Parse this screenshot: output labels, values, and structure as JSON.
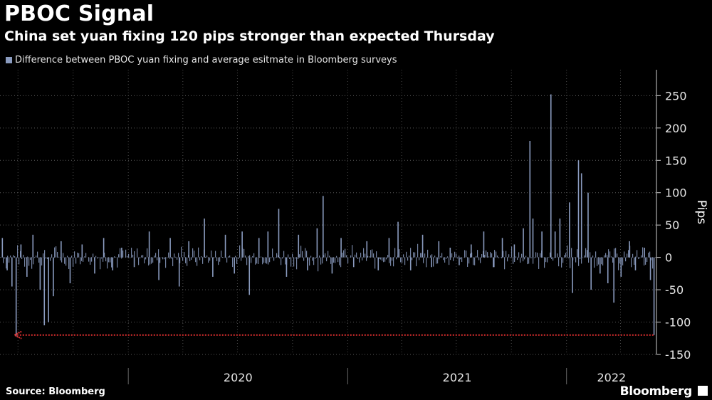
{
  "header": {
    "title": "PBOC Signal",
    "subtitle": "China set yuan fixing 120 pips stronger than expected Thursday"
  },
  "legend": {
    "label": "Difference between PBOC yuan fixing and average esitmate in Bloomberg surveys",
    "color": "#8a9bbf"
  },
  "footer": {
    "source": "Source: Bloomberg",
    "brand": "Bloomberg"
  },
  "chart_data": {
    "type": "bar",
    "ylabel": "Pips",
    "ylim": [
      -150,
      290
    ],
    "yticks": [
      250,
      200,
      150,
      100,
      50,
      0,
      -50,
      -100,
      -150
    ],
    "xlabels": [
      "2020",
      "2021",
      "2022"
    ],
    "xrange": [
      "2019-06-01",
      "2022-05-31"
    ],
    "year_boundaries": [
      "2020-01-01",
      "2021-01-01",
      "2022-01-01"
    ],
    "grid": true,
    "annotation": {
      "value": -120,
      "color": "#e03030",
      "style": "dotted-arrow",
      "from": "2022-05-26",
      "to": "2019-06-25"
    },
    "series": [
      {
        "color": "#8a9bbf",
        "points": [
          {
            "x": "2019-06-04",
            "y": 30
          },
          {
            "x": "2019-06-12",
            "y": -20
          },
          {
            "x": "2019-06-20",
            "y": -45
          },
          {
            "x": "2019-06-27",
            "y": -122
          },
          {
            "x": "2019-07-05",
            "y": 20
          },
          {
            "x": "2019-07-15",
            "y": -30
          },
          {
            "x": "2019-07-25",
            "y": 35
          },
          {
            "x": "2019-08-06",
            "y": -50
          },
          {
            "x": "2019-08-13",
            "y": -105
          },
          {
            "x": "2019-08-20",
            "y": -100
          },
          {
            "x": "2019-08-28",
            "y": -60
          },
          {
            "x": "2019-09-10",
            "y": 25
          },
          {
            "x": "2019-09-25",
            "y": -40
          },
          {
            "x": "2019-10-15",
            "y": 20
          },
          {
            "x": "2019-11-05",
            "y": -25
          },
          {
            "x": "2019-11-20",
            "y": 30
          },
          {
            "x": "2019-12-05",
            "y": -20
          },
          {
            "x": "2019-12-20",
            "y": 15
          },
          {
            "x": "2020-01-10",
            "y": -15
          },
          {
            "x": "2020-02-04",
            "y": 40
          },
          {
            "x": "2020-02-20",
            "y": -35
          },
          {
            "x": "2020-03-10",
            "y": 30
          },
          {
            "x": "2020-03-25",
            "y": -45
          },
          {
            "x": "2020-04-10",
            "y": 25
          },
          {
            "x": "2020-05-06",
            "y": 60
          },
          {
            "x": "2020-05-20",
            "y": -30
          },
          {
            "x": "2020-06-10",
            "y": 35
          },
          {
            "x": "2020-06-25",
            "y": -25
          },
          {
            "x": "2020-07-08",
            "y": 40
          },
          {
            "x": "2020-07-20",
            "y": -58
          },
          {
            "x": "2020-08-05",
            "y": 30
          },
          {
            "x": "2020-08-20",
            "y": 40
          },
          {
            "x": "2020-09-07",
            "y": 75
          },
          {
            "x": "2020-09-20",
            "y": -30
          },
          {
            "x": "2020-10-10",
            "y": 35
          },
          {
            "x": "2020-10-25",
            "y": -20
          },
          {
            "x": "2020-11-10",
            "y": 45
          },
          {
            "x": "2020-11-20",
            "y": 95
          },
          {
            "x": "2020-12-05",
            "y": -25
          },
          {
            "x": "2020-12-20",
            "y": 30
          },
          {
            "x": "2021-01-10",
            "y": -15
          },
          {
            "x": "2021-02-01",
            "y": 25
          },
          {
            "x": "2021-02-20",
            "y": -20
          },
          {
            "x": "2021-03-10",
            "y": 30
          },
          {
            "x": "2021-03-25",
            "y": 55
          },
          {
            "x": "2021-04-15",
            "y": -20
          },
          {
            "x": "2021-05-05",
            "y": 35
          },
          {
            "x": "2021-05-20",
            "y": -15
          },
          {
            "x": "2021-06-01",
            "y": 25
          },
          {
            "x": "2021-06-20",
            "y": 15
          },
          {
            "x": "2021-07-05",
            "y": -12
          },
          {
            "x": "2021-07-25",
            "y": 20
          },
          {
            "x": "2021-08-15",
            "y": 40
          },
          {
            "x": "2021-09-01",
            "y": -15
          },
          {
            "x": "2021-09-15",
            "y": 30
          },
          {
            "x": "2021-10-05",
            "y": 20
          },
          {
            "x": "2021-10-20",
            "y": 45
          },
          {
            "x": "2021-10-31",
            "y": 180
          },
          {
            "x": "2021-11-05",
            "y": 60
          },
          {
            "x": "2021-11-20",
            "y": 40
          },
          {
            "x": "2021-12-05",
            "y": 252
          },
          {
            "x": "2021-12-12",
            "y": 40
          },
          {
            "x": "2021-12-20",
            "y": 60
          },
          {
            "x": "2022-01-05",
            "y": 85
          },
          {
            "x": "2022-01-10",
            "y": -55
          },
          {
            "x": "2022-01-20",
            "y": 150
          },
          {
            "x": "2022-01-25",
            "y": 130
          },
          {
            "x": "2022-02-05",
            "y": 100
          },
          {
            "x": "2022-02-10",
            "y": -50
          },
          {
            "x": "2022-02-25",
            "y": -25
          },
          {
            "x": "2022-03-10",
            "y": -40
          },
          {
            "x": "2022-03-20",
            "y": -70
          },
          {
            "x": "2022-04-01",
            "y": -30
          },
          {
            "x": "2022-04-15",
            "y": 25
          },
          {
            "x": "2022-04-25",
            "y": -20
          },
          {
            "x": "2022-05-10",
            "y": 15
          },
          {
            "x": "2022-05-20",
            "y": -35
          },
          {
            "x": "2022-05-26",
            "y": -120
          }
        ]
      }
    ]
  }
}
